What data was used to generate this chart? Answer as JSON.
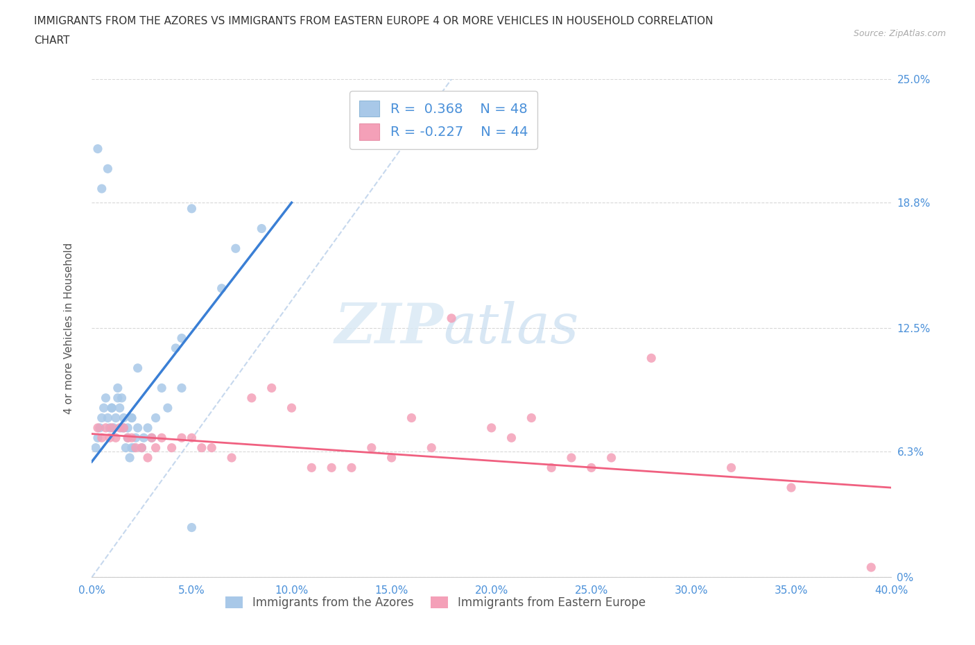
{
  "title_line1": "IMMIGRANTS FROM THE AZORES VS IMMIGRANTS FROM EASTERN EUROPE 4 OR MORE VEHICLES IN HOUSEHOLD CORRELATION",
  "title_line2": "CHART",
  "source": "Source: ZipAtlas.com",
  "yticks": [
    "0%",
    "6.3%",
    "12.5%",
    "18.8%",
    "25.0%"
  ],
  "ytick_vals": [
    0,
    6.3,
    12.5,
    18.8,
    25.0
  ],
  "xtick_vals": [
    0,
    5,
    10,
    15,
    20,
    25,
    30,
    35,
    40
  ],
  "watermark_zip": "ZIP",
  "watermark_atlas": "atlas",
  "color_azores": "#a8c8e8",
  "color_eastern": "#f4a0b8",
  "color_line_azores": "#3a7fd5",
  "color_line_eastern": "#f06080",
  "color_diag": "#c0d4ec",
  "azores_x": [
    0.3,
    0.5,
    0.8,
    1.0,
    1.2,
    1.3,
    1.5,
    1.6,
    1.7,
    1.8,
    1.9,
    2.0,
    2.0,
    2.1,
    2.2,
    2.3,
    2.3,
    2.5,
    2.6,
    2.8,
    3.0,
    3.2,
    3.5,
    3.8,
    4.2,
    4.5,
    5.0,
    6.5,
    7.2,
    8.5,
    0.2,
    0.3,
    0.4,
    0.5,
    0.6,
    0.7,
    0.8,
    0.9,
    1.0,
    1.1,
    1.3,
    1.4,
    1.5,
    1.6,
    1.8,
    2.0,
    4.5,
    5.0
  ],
  "azores_y": [
    21.5,
    19.5,
    20.5,
    8.5,
    8.0,
    9.0,
    7.5,
    7.5,
    6.5,
    7.0,
    6.0,
    6.5,
    8.0,
    6.5,
    7.0,
    7.5,
    10.5,
    6.5,
    7.0,
    7.5,
    7.0,
    8.0,
    9.5,
    8.5,
    11.5,
    12.0,
    18.5,
    14.5,
    16.5,
    17.5,
    6.5,
    7.0,
    7.5,
    8.0,
    8.5,
    9.0,
    8.0,
    7.5,
    8.5,
    7.5,
    9.5,
    8.5,
    9.0,
    8.0,
    7.5,
    8.0,
    9.5,
    2.5
  ],
  "eastern_x": [
    0.3,
    0.5,
    0.7,
    0.9,
    1.0,
    1.2,
    1.4,
    1.6,
    1.8,
    2.0,
    2.2,
    2.5,
    2.8,
    3.0,
    3.2,
    3.5,
    4.0,
    4.5,
    5.0,
    5.5,
    6.0,
    7.0,
    8.0,
    9.0,
    10.0,
    11.0,
    12.0,
    13.0,
    14.0,
    15.0,
    16.0,
    17.0,
    18.0,
    20.0,
    21.0,
    22.0,
    23.0,
    24.0,
    25.0,
    26.0,
    28.0,
    32.0,
    35.0,
    39.0
  ],
  "eastern_y": [
    7.5,
    7.0,
    7.5,
    7.0,
    7.5,
    7.0,
    7.5,
    7.5,
    7.0,
    7.0,
    6.5,
    6.5,
    6.0,
    7.0,
    6.5,
    7.0,
    6.5,
    7.0,
    7.0,
    6.5,
    6.5,
    6.0,
    9.0,
    9.5,
    8.5,
    5.5,
    5.5,
    5.5,
    6.5,
    6.0,
    8.0,
    6.5,
    13.0,
    7.5,
    7.0,
    8.0,
    5.5,
    6.0,
    5.5,
    6.0,
    11.0,
    5.5,
    4.5,
    0.5
  ],
  "line1_x0": 0.0,
  "line1_y0": 5.8,
  "line1_x1": 10.0,
  "line1_y1": 18.8,
  "line2_x0": 0.0,
  "line2_y0": 7.2,
  "line2_x1": 40.0,
  "line2_y1": 4.5,
  "diag_x0": 0.0,
  "diag_y0": 0.0,
  "diag_x1": 18.0,
  "diag_y1": 25.0
}
